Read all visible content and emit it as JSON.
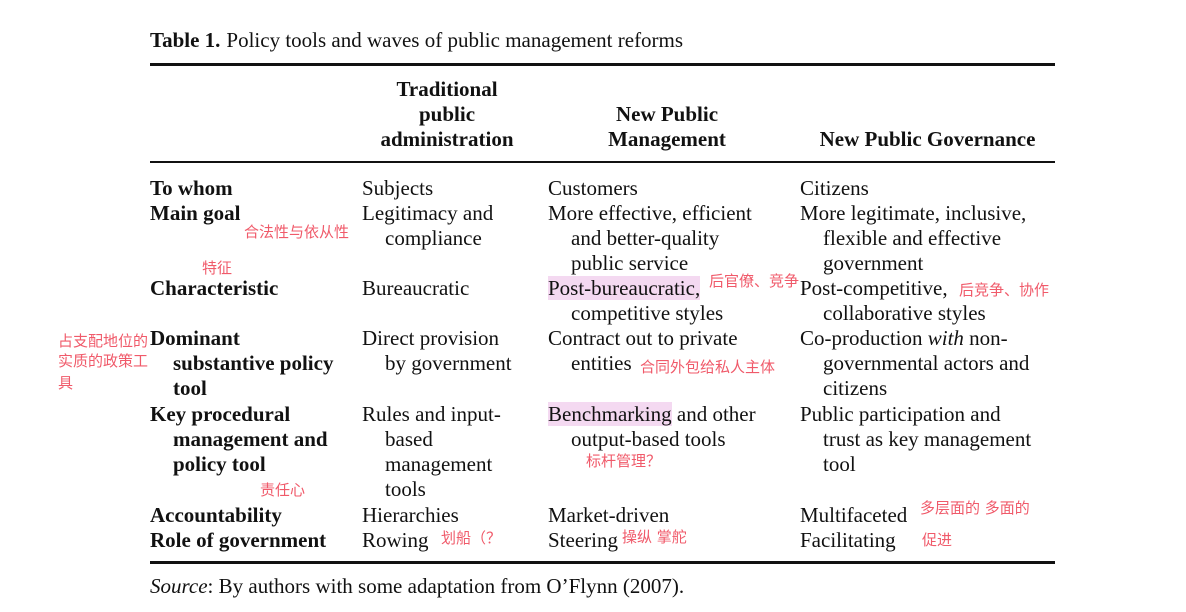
{
  "table": {
    "caption_label": "Table 1.",
    "caption_text": "Policy tools and waves of public management reforms",
    "columns": [
      [
        "Traditional",
        "public",
        "administration"
      ],
      [
        "New Public",
        "Management"
      ],
      [
        "New Public Governance"
      ]
    ],
    "rows": [
      {
        "label": [
          "To whom"
        ],
        "cells": [
          [
            "Subjects"
          ],
          [
            "Customers"
          ],
          [
            "Citizens"
          ]
        ]
      },
      {
        "label": [
          "Main goal"
        ],
        "cells": [
          [
            "Legitimacy and",
            "compliance"
          ],
          [
            "More effective, efficient",
            "and better-quality",
            "public service"
          ],
          [
            "More legitimate, inclusive,",
            "flexible and effective",
            "government"
          ]
        ]
      },
      {
        "label": [
          "Characteristic"
        ],
        "cells": [
          [
            "Bureaucratic"
          ],
          [
            "Post-bureaucratic,",
            "competitive styles"
          ],
          [
            "Post-competitive,",
            "collaborative styles"
          ]
        ]
      },
      {
        "label": [
          "Dominant",
          "substantive policy",
          "tool"
        ],
        "cells": [
          [
            "Direct provision",
            "by government"
          ],
          [
            "Contract out to private",
            "entities"
          ],
          [
            "Co-production ",
            "with",
            " non-",
            "governmental actors and",
            "citizens"
          ]
        ]
      },
      {
        "label": [
          "Key procedural",
          "management and",
          "policy tool"
        ],
        "cells": [
          [
            "Rules and input-",
            "based",
            "management",
            "tools"
          ],
          [
            "Benchmarking",
            " and other",
            "output-based tools"
          ],
          [
            "Public participation and",
            "trust as key management",
            "tool"
          ]
        ]
      },
      {
        "label": [
          "Accountability"
        ],
        "cells": [
          [
            "Hierarchies"
          ],
          [
            "Market-driven"
          ],
          [
            "Multifaceted"
          ]
        ]
      },
      {
        "label": [
          "Role of government"
        ],
        "cells": [
          [
            "Rowing"
          ],
          [
            "Steering"
          ],
          [
            "Facilitating"
          ]
        ]
      }
    ],
    "source_label": "Source",
    "source_text": ": By authors with some adaptation from O’Flynn (2007)."
  },
  "annotations": {
    "main_goal": "合法性与依从性",
    "characteristic": "特征",
    "post_bureaucratic": "后官僚、竞争",
    "post_competitive": "后竞争、协作",
    "dominant_1": "占支配地位的",
    "dominant_2": "实质的政策工",
    "dominant_3": "具",
    "contract_out": "合同外包给私人主体",
    "benchmarking": "标杆管理？",
    "accountability": "责任心",
    "multifaceted": "多层面的 多面的",
    "rowing": "划船（？",
    "steering": "操纵 掌舵",
    "facilitating": "促进"
  },
  "colors": {
    "annotation": "#f05a6a",
    "highlight": "#f4d9f1",
    "text": "#111111"
  }
}
